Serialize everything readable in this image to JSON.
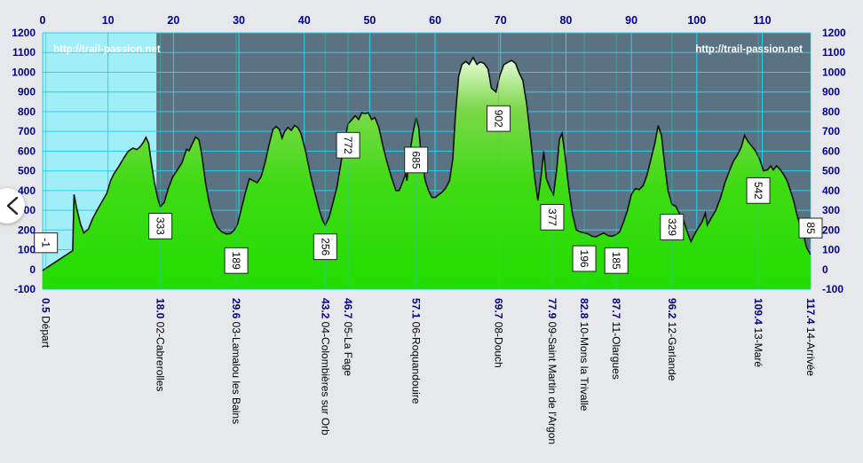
{
  "watermark": "http://trail-passion.net",
  "chart_data": {
    "type": "area",
    "title": "",
    "xlabel": "",
    "ylabel": "",
    "xlim": [
      0,
      117.4
    ],
    "ylim": [
      -100,
      1200
    ],
    "x_ticks": [
      0,
      10,
      20,
      30,
      40,
      50,
      60,
      70,
      80,
      90,
      100,
      110
    ],
    "y_ticks": [
      -100,
      0,
      100,
      200,
      300,
      400,
      500,
      600,
      700,
      800,
      900,
      1000,
      1100,
      1200
    ],
    "grid": true,
    "highlighted_range": [
      0,
      17.4
    ],
    "colors": {
      "fill_top": "#eafbdc",
      "fill_mid": "#7cd84a",
      "fill_bottom": "#22dd00",
      "plot_bg": "#5a7282",
      "highlight_bg": "#a0eef7",
      "grid": "#27d3ee",
      "axis_text": "#00008b",
      "line": "#111111"
    },
    "series": [
      {
        "points": [
          [
            0,
            -5
          ],
          [
            4.6,
            95
          ],
          [
            4.8,
            380
          ],
          [
            5.2,
            310
          ],
          [
            5.8,
            230
          ],
          [
            6.3,
            185
          ],
          [
            7,
            205
          ],
          [
            7.6,
            255
          ],
          [
            8.4,
            305
          ],
          [
            9.1,
            345
          ],
          [
            9.8,
            385
          ],
          [
            10.4,
            450
          ],
          [
            10.9,
            485
          ],
          [
            11.6,
            520
          ],
          [
            12.4,
            565
          ],
          [
            13.1,
            600
          ],
          [
            13.8,
            615
          ],
          [
            14.4,
            608
          ],
          [
            14.9,
            622
          ],
          [
            15.4,
            645
          ],
          [
            15.8,
            670
          ],
          [
            16.2,
            640
          ],
          [
            16.6,
            545
          ],
          [
            17.1,
            440
          ],
          [
            17.6,
            360
          ],
          [
            18.0,
            318
          ],
          [
            18.6,
            340
          ],
          [
            19.2,
            410
          ],
          [
            19.9,
            470
          ],
          [
            20.6,
            505
          ],
          [
            21.3,
            540
          ],
          [
            22.0,
            610
          ],
          [
            22.4,
            602
          ],
          [
            22.9,
            638
          ],
          [
            23.4,
            672
          ],
          [
            23.9,
            658
          ],
          [
            24.3,
            590
          ],
          [
            24.9,
            440
          ],
          [
            25.5,
            330
          ],
          [
            26.1,
            260
          ],
          [
            26.7,
            215
          ],
          [
            27.4,
            190
          ],
          [
            28.1,
            180
          ],
          [
            28.7,
            182
          ],
          [
            29.3,
            200
          ],
          [
            29.8,
            230
          ],
          [
            30.4,
            310
          ],
          [
            31.0,
            390
          ],
          [
            31.6,
            460
          ],
          [
            32.2,
            450
          ],
          [
            32.8,
            440
          ],
          [
            33.4,
            470
          ],
          [
            34.0,
            540
          ],
          [
            34.6,
            630
          ],
          [
            35.2,
            710
          ],
          [
            35.7,
            725
          ],
          [
            36.2,
            710
          ],
          [
            36.6,
            665
          ],
          [
            37.0,
            700
          ],
          [
            37.5,
            720
          ],
          [
            38.0,
            705
          ],
          [
            38.5,
            730
          ],
          [
            39.0,
            720
          ],
          [
            39.5,
            690
          ],
          [
            40.2,
            600
          ],
          [
            41.0,
            470
          ],
          [
            41.7,
            380
          ],
          [
            42.3,
            300
          ],
          [
            42.8,
            250
          ],
          [
            43.2,
            225
          ],
          [
            43.8,
            265
          ],
          [
            44.4,
            340
          ],
          [
            45.0,
            420
          ],
          [
            45.6,
            540
          ],
          [
            46.2,
            660
          ],
          [
            46.7,
            740
          ],
          [
            47.3,
            760
          ],
          [
            47.8,
            780
          ],
          [
            48.3,
            760
          ],
          [
            48.8,
            795
          ],
          [
            49.3,
            790
          ],
          [
            49.8,
            795
          ],
          [
            50.3,
            760
          ],
          [
            50.8,
            770
          ],
          [
            51.4,
            720
          ],
          [
            52.0,
            630
          ],
          [
            52.6,
            550
          ],
          [
            53.3,
            470
          ],
          [
            54.0,
            400
          ],
          [
            54.5,
            400
          ],
          [
            55.0,
            440
          ],
          [
            55.5,
            485
          ],
          [
            55.7,
            450
          ],
          [
            56.1,
            580
          ],
          [
            56.6,
            690
          ],
          [
            57.1,
            770
          ],
          [
            57.5,
            715
          ],
          [
            57.9,
            560
          ],
          [
            58.5,
            450
          ],
          [
            59.0,
            400
          ],
          [
            59.5,
            365
          ],
          [
            60.0,
            365
          ],
          [
            60.5,
            378
          ],
          [
            61.0,
            390
          ],
          [
            61.6,
            412
          ],
          [
            62.2,
            450
          ],
          [
            62.7,
            560
          ],
          [
            63.1,
            780
          ],
          [
            63.6,
            980
          ],
          [
            64.1,
            1040
          ],
          [
            64.7,
            1055
          ],
          [
            65.2,
            1040
          ],
          [
            65.8,
            1075
          ],
          [
            66.4,
            1040
          ],
          [
            66.9,
            1052
          ],
          [
            67.5,
            1045
          ],
          [
            68.1,
            1015
          ],
          [
            68.6,
            920
          ],
          [
            69.3,
            900
          ],
          [
            69.9,
            985
          ],
          [
            70.5,
            1038
          ],
          [
            71.1,
            1050
          ],
          [
            71.7,
            1060
          ],
          [
            72.3,
            1045
          ],
          [
            72.8,
            1000
          ],
          [
            73.4,
            960
          ],
          [
            74.0,
            840
          ],
          [
            74.6,
            660
          ],
          [
            75.2,
            470
          ],
          [
            75.7,
            350
          ],
          [
            76.2,
            470
          ],
          [
            76.6,
            600
          ],
          [
            77.0,
            460
          ],
          [
            77.6,
            410
          ],
          [
            78.1,
            380
          ],
          [
            78.6,
            510
          ],
          [
            79.0,
            660
          ],
          [
            79.4,
            690
          ],
          [
            79.9,
            570
          ],
          [
            80.4,
            420
          ],
          [
            81.0,
            280
          ],
          [
            81.6,
            200
          ],
          [
            82.2,
            190
          ],
          [
            82.8,
            185
          ],
          [
            83.4,
            180
          ],
          [
            84.0,
            168
          ],
          [
            84.6,
            166
          ],
          [
            85.2,
            176
          ],
          [
            85.8,
            185
          ],
          [
            86.4,
            172
          ],
          [
            87.0,
            168
          ],
          [
            87.6,
            175
          ],
          [
            88.2,
            190
          ],
          [
            88.8,
            240
          ],
          [
            89.4,
            300
          ],
          [
            90.0,
            380
          ],
          [
            90.6,
            410
          ],
          [
            91.2,
            405
          ],
          [
            91.8,
            425
          ],
          [
            92.4,
            480
          ],
          [
            93.0,
            560
          ],
          [
            93.6,
            640
          ],
          [
            94.1,
            730
          ],
          [
            94.6,
            680
          ],
          [
            95.1,
            530
          ],
          [
            95.6,
            400
          ],
          [
            96.2,
            330
          ],
          [
            96.8,
            320
          ],
          [
            97.4,
            280
          ],
          [
            98.0,
            245
          ],
          [
            98.6,
            185
          ],
          [
            99.1,
            140
          ],
          [
            99.6,
            175
          ],
          [
            100.2,
            210
          ],
          [
            100.8,
            240
          ],
          [
            101.3,
            285
          ],
          [
            101.6,
            225
          ],
          [
            102.2,
            260
          ],
          [
            102.9,
            300
          ],
          [
            103.6,
            360
          ],
          [
            104.3,
            440
          ],
          [
            105.0,
            500
          ],
          [
            105.6,
            550
          ],
          [
            106.2,
            580
          ],
          [
            106.8,
            620
          ],
          [
            107.3,
            680
          ],
          [
            107.8,
            650
          ],
          [
            108.4,
            625
          ],
          [
            109.0,
            600
          ],
          [
            109.6,
            560
          ],
          [
            110.2,
            500
          ],
          [
            110.8,
            505
          ],
          [
            111.3,
            525
          ],
          [
            111.7,
            505
          ],
          [
            112.2,
            525
          ],
          [
            112.8,
            505
          ],
          [
            113.3,
            480
          ],
          [
            113.8,
            450
          ],
          [
            114.3,
            400
          ],
          [
            114.8,
            350
          ],
          [
            115.3,
            280
          ],
          [
            115.8,
            220
          ],
          [
            116.3,
            175
          ],
          [
            116.8,
            110
          ],
          [
            117.4,
            75
          ]
        ]
      }
    ],
    "annotations": [
      {
        "x": 0.5,
        "y_box": 135,
        "label": "-1",
        "km": "0.5",
        "name": "Départ"
      },
      {
        "x": 18.0,
        "y_box": 220,
        "label": "333",
        "km": "18.0",
        "name": "02-Cabrerolles"
      },
      {
        "x": 29.6,
        "y_box": 45,
        "label": "189",
        "km": "29.6",
        "name": "03-Lamalou les Bains"
      },
      {
        "x": 43.2,
        "y_box": 115,
        "label": "256",
        "km": "43.2",
        "name": "04-Colombières sur Orb"
      },
      {
        "x": 46.7,
        "y_box": 630,
        "label": "772",
        "km": "46.7",
        "name": "05-La Fage"
      },
      {
        "x": 57.1,
        "y_box": 555,
        "label": "685",
        "km": "57.1",
        "name": "06-Roquandouire"
      },
      {
        "x": 69.7,
        "y_box": 765,
        "label": "902",
        "km": "69.7",
        "name": "08-Douch"
      },
      {
        "x": 77.9,
        "y_box": 265,
        "label": "377",
        "km": "77.9",
        "name": "09-Saint Martin de l'Argon"
      },
      {
        "x": 82.8,
        "y_box": 55,
        "label": "196",
        "km": "82.8",
        "name": "10-Mons la Trivalle"
      },
      {
        "x": 87.7,
        "y_box": 45,
        "label": "185",
        "km": "87.7",
        "name": "11-Olargues"
      },
      {
        "x": 96.2,
        "y_box": 215,
        "label": "329",
        "km": "96.2",
        "name": "12-Garlande"
      },
      {
        "x": 109.4,
        "y_box": 400,
        "label": "542",
        "km": "109.4",
        "name": "13-Maré"
      },
      {
        "x": 117.4,
        "y_box": 210,
        "label": "85",
        "km": "117.4",
        "name": "14-Arrivée"
      }
    ]
  }
}
